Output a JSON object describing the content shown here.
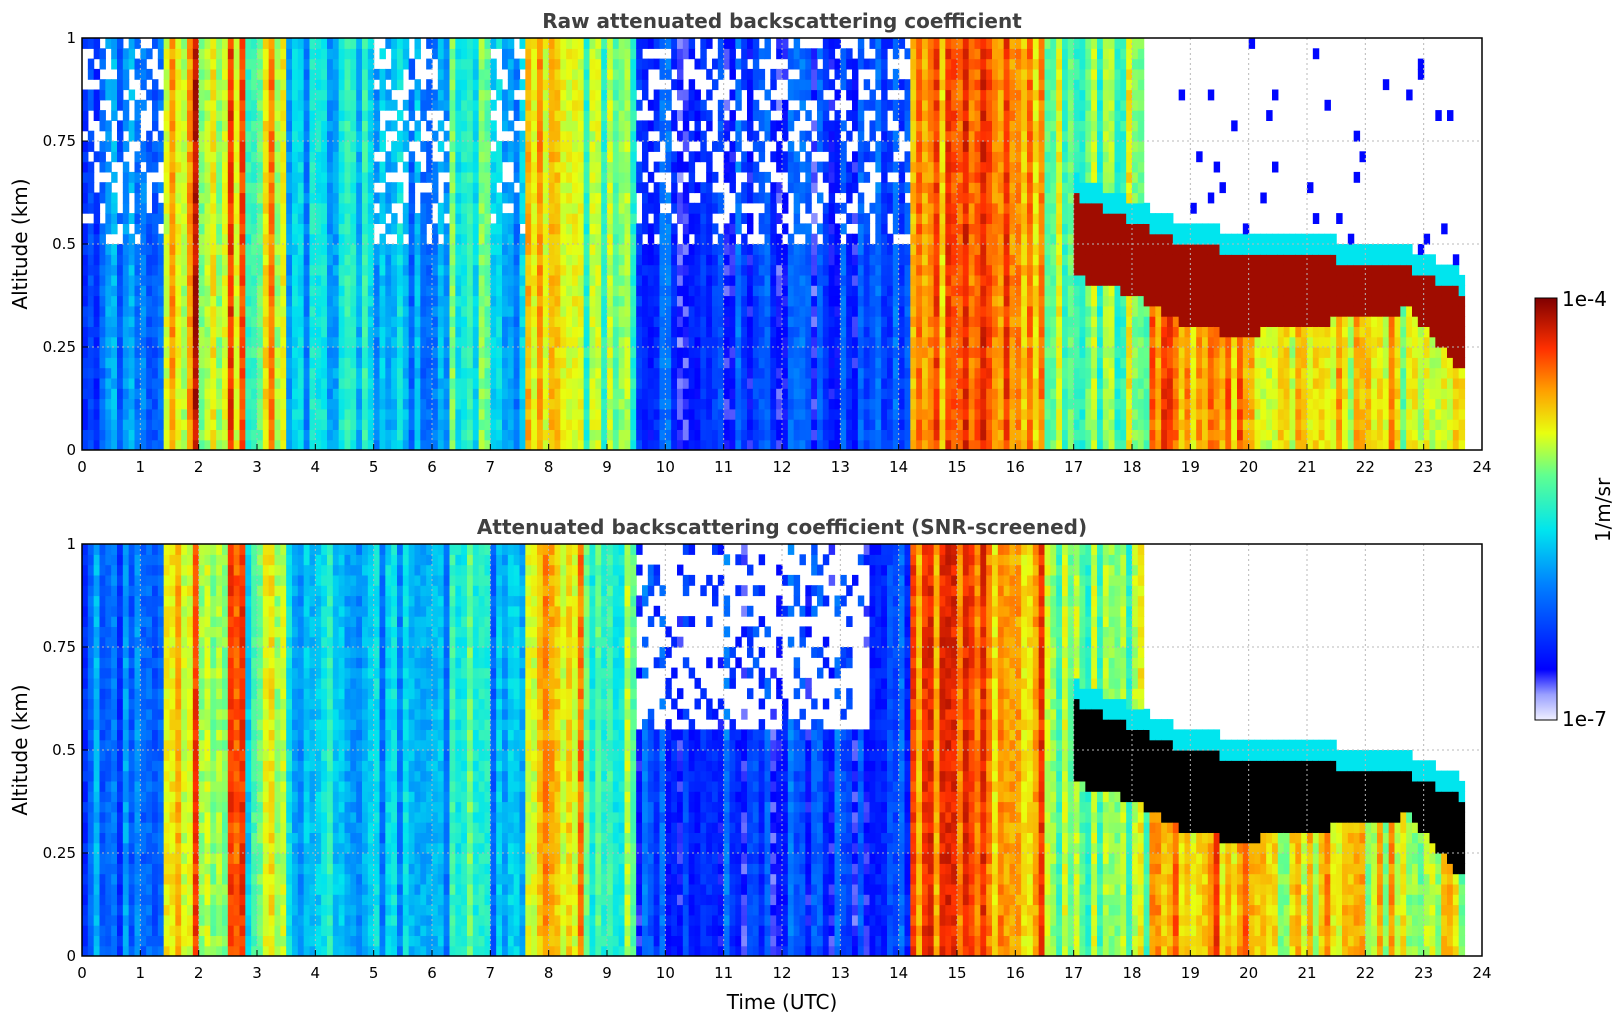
{
  "chart_data": [
    {
      "type": "heatmap",
      "title": "Raw attenuated backscattering coefficient",
      "xlabel": "",
      "ylabel": "Altitude (km)",
      "xlim": [
        0,
        24
      ],
      "ylim": [
        0,
        1
      ],
      "x_ticks": [
        "0",
        "1",
        "2",
        "3",
        "4",
        "5",
        "6",
        "7",
        "8",
        "9",
        "10",
        "11",
        "12",
        "13",
        "14",
        "15",
        "16",
        "17",
        "18",
        "19",
        "20",
        "21",
        "22",
        "23",
        "24"
      ],
      "y_ticks": [
        "0",
        "0.25",
        "0.5",
        "0.75",
        "1"
      ],
      "y_tick_values": [
        0,
        0.25,
        0.5,
        0.75,
        1
      ],
      "grid": true,
      "screened": false,
      "bands_hours": [
        {
          "start": 0.0,
          "end": 1.4,
          "level": 0.28
        },
        {
          "start": 1.4,
          "end": 1.9,
          "level": 0.68
        },
        {
          "start": 1.9,
          "end": 2.0,
          "level": 0.92
        },
        {
          "start": 2.0,
          "end": 2.5,
          "level": 0.66
        },
        {
          "start": 2.5,
          "end": 2.8,
          "level": 0.78
        },
        {
          "start": 2.8,
          "end": 3.1,
          "level": 0.5
        },
        {
          "start": 3.1,
          "end": 3.5,
          "level": 0.72
        },
        {
          "start": 3.5,
          "end": 4.0,
          "level": 0.4
        },
        {
          "start": 4.0,
          "end": 5.0,
          "level": 0.42
        },
        {
          "start": 5.0,
          "end": 6.0,
          "level": 0.36
        },
        {
          "start": 6.0,
          "end": 6.3,
          "level": 0.3
        },
        {
          "start": 6.3,
          "end": 7.0,
          "level": 0.52
        },
        {
          "start": 7.0,
          "end": 7.6,
          "level": 0.34
        },
        {
          "start": 7.6,
          "end": 8.6,
          "level": 0.76
        },
        {
          "start": 8.6,
          "end": 9.5,
          "level": 0.56
        },
        {
          "start": 9.5,
          "end": 14.2,
          "level": 0.2
        },
        {
          "start": 14.2,
          "end": 16.5,
          "level": 0.8
        },
        {
          "start": 16.5,
          "end": 18.3,
          "level": 0.6
        },
        {
          "start": 18.3,
          "end": 20.0,
          "level": 0.78
        },
        {
          "start": 20.0,
          "end": 22.5,
          "level": 0.7
        },
        {
          "start": 22.5,
          "end": 23.7,
          "level": 0.66
        }
      ],
      "cloud_layer": {
        "start": 17.0,
        "end": 23.7,
        "top_km": [
          0.62,
          0.56,
          0.5,
          0.48,
          0.47,
          0.46,
          0.44,
          0.38
        ],
        "base_km": [
          0.42,
          0.38,
          0.3,
          0.28,
          0.3,
          0.32,
          0.34,
          0.18
        ]
      },
      "data_end_hour": 23.7
    },
    {
      "type": "heatmap",
      "title": "Attenuated backscattering coefficient (SNR-screened)",
      "xlabel": "Time (UTC)",
      "ylabel": "Altitude (km)",
      "xlim": [
        0,
        24
      ],
      "ylim": [
        0,
        1
      ],
      "x_ticks": [
        "0",
        "1",
        "2",
        "3",
        "4",
        "5",
        "6",
        "7",
        "8",
        "9",
        "10",
        "11",
        "12",
        "13",
        "14",
        "15",
        "16",
        "17",
        "18",
        "19",
        "20",
        "21",
        "22",
        "23",
        "24"
      ],
      "y_ticks": [
        "0",
        "0.25",
        "0.5",
        "0.75",
        "1"
      ],
      "y_tick_values": [
        0,
        0.25,
        0.5,
        0.75,
        1
      ],
      "grid": true,
      "screened": true,
      "bands_hours": [
        {
          "start": 0.0,
          "end": 1.4,
          "level": 0.28
        },
        {
          "start": 1.4,
          "end": 1.9,
          "level": 0.68
        },
        {
          "start": 1.9,
          "end": 2.0,
          "level": 0.92
        },
        {
          "start": 2.0,
          "end": 2.5,
          "level": 0.66
        },
        {
          "start": 2.5,
          "end": 2.8,
          "level": 0.78
        },
        {
          "start": 2.8,
          "end": 3.1,
          "level": 0.5
        },
        {
          "start": 3.1,
          "end": 3.5,
          "level": 0.72
        },
        {
          "start": 3.5,
          "end": 4.0,
          "level": 0.4
        },
        {
          "start": 4.0,
          "end": 5.0,
          "level": 0.42
        },
        {
          "start": 5.0,
          "end": 6.0,
          "level": 0.36
        },
        {
          "start": 6.0,
          "end": 6.3,
          "level": 0.3
        },
        {
          "start": 6.3,
          "end": 7.0,
          "level": 0.52
        },
        {
          "start": 7.0,
          "end": 7.6,
          "level": 0.34
        },
        {
          "start": 7.6,
          "end": 8.6,
          "level": 0.76
        },
        {
          "start": 8.6,
          "end": 9.5,
          "level": 0.56
        },
        {
          "start": 9.5,
          "end": 14.2,
          "level": 0.2
        },
        {
          "start": 14.2,
          "end": 16.5,
          "level": 0.8
        },
        {
          "start": 16.5,
          "end": 18.3,
          "level": 0.6
        },
        {
          "start": 18.3,
          "end": 20.0,
          "level": 0.78
        },
        {
          "start": 20.0,
          "end": 22.5,
          "level": 0.7
        },
        {
          "start": 22.5,
          "end": 23.7,
          "level": 0.66
        }
      ],
      "cloud_layer": {
        "start": 17.0,
        "end": 23.7,
        "top_km": [
          0.62,
          0.56,
          0.5,
          0.48,
          0.47,
          0.46,
          0.44,
          0.38
        ],
        "base_km": [
          0.42,
          0.38,
          0.3,
          0.28,
          0.3,
          0.32,
          0.34,
          0.18
        ]
      },
      "data_end_hour": 23.7
    }
  ],
  "colorbar": {
    "label": "1/m/sr",
    "max_label": "1e-4",
    "min_label": "1e-7",
    "colormap": "jet"
  }
}
